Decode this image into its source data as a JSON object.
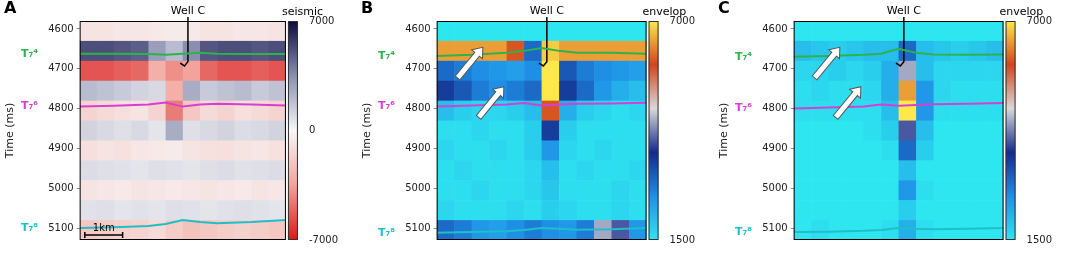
{
  "chart_data": [
    {
      "type": "heatmap",
      "panel": "A",
      "y_label": "Time (ms)",
      "xlim": [
        0,
        12
      ],
      "ylim": [
        4580,
        5130
      ],
      "yticks": [
        4600,
        4700,
        4800,
        4900,
        5000,
        5100
      ],
      "grid": true,
      "tick_labels": "y",
      "cells": {
        "x_edges": [
          0,
          1,
          2,
          3,
          4,
          5,
          6,
          7,
          8,
          9,
          10,
          11,
          12
        ],
        "y_edges": [
          4580,
          4630,
          4680,
          4730,
          4780,
          4830,
          4880,
          4930,
          4980,
          5030,
          5080,
          5130
        ],
        "values": [
          [
            -800,
            -800,
            -700,
            -700,
            -600,
            -500,
            -600,
            -800,
            -800,
            -700,
            -700,
            -800
          ],
          [
            5200,
            5200,
            5000,
            4800,
            3000,
            2000,
            3500,
            5000,
            5200,
            5200,
            5000,
            5200
          ],
          [
            -5500,
            -5500,
            -5200,
            -5000,
            -3000,
            -4000,
            -3500,
            -5000,
            -5500,
            -5500,
            -5200,
            -5500
          ],
          [
            2000,
            1800,
            1500,
            1200,
            1000,
            -3000,
            2500,
            1500,
            1800,
            2000,
            1500,
            1800
          ],
          [
            -1500,
            -1200,
            -1000,
            -800,
            -1500,
            -4500,
            -2000,
            -1200,
            -1500,
            -1000,
            -1200,
            -1500
          ],
          [
            1200,
            1000,
            800,
            1000,
            600,
            2500,
            800,
            1000,
            1200,
            900,
            1000,
            1200
          ],
          [
            -1000,
            -800,
            -900,
            -700,
            -600,
            -500,
            -800,
            -900,
            -1000,
            -800,
            -700,
            -900
          ],
          [
            900,
            800,
            700,
            600,
            800,
            700,
            600,
            800,
            900,
            700,
            800,
            900
          ],
          [
            -800,
            -700,
            -600,
            -800,
            -700,
            -600,
            -700,
            -800,
            -700,
            -600,
            -800,
            -700
          ],
          [
            700,
            800,
            600,
            700,
            600,
            800,
            700,
            600,
            700,
            800,
            700,
            600
          ],
          [
            -2000,
            -1800,
            -1600,
            -1500,
            -1200,
            -1800,
            -2200,
            -2000,
            -1800,
            -1600,
            -1800,
            -2000
          ]
        ]
      },
      "colorbar": {
        "label": "seismic",
        "range": [
          -7000,
          7000
        ],
        "ticks": [
          7000,
          0,
          -7000
        ],
        "colors": [
          "#d7191c",
          "#f2a39b",
          "#f7f7f7",
          "#8a8fb0",
          "#0b0b40"
        ]
      },
      "series": [
        {
          "name": "T₇⁴",
          "color": "#2db34a",
          "x": [
            0,
            2,
            4,
            5,
            6,
            7,
            8,
            10,
            12
          ],
          "values": [
            4662,
            4662,
            4663,
            4665,
            4662,
            4660,
            4662,
            4663,
            4663
          ]
        },
        {
          "name": "T₇⁶",
          "color": "#d63fd6",
          "x": [
            0,
            2,
            4,
            5,
            6,
            7,
            8,
            10,
            12
          ],
          "values": [
            4795,
            4793,
            4790,
            4785,
            4795,
            4790,
            4788,
            4790,
            4792
          ]
        },
        {
          "name": "T₇⁸",
          "color": "#1fbfc8",
          "x": [
            0,
            2,
            4,
            5,
            6,
            7,
            8,
            10,
            12
          ],
          "values": [
            5100,
            5098,
            5095,
            5090,
            5080,
            5085,
            5088,
            5085,
            5080
          ]
        }
      ],
      "well": {
        "label": "Well C",
        "x": [
          6.3,
          6.3,
          6.1,
          5.85
        ],
        "t": [
          4580,
          4682,
          4693,
          4686
        ]
      },
      "scale_bar": {
        "label": "1km",
        "length": 2.2
      }
    },
    {
      "type": "heatmap",
      "panel": "B",
      "y_label": "Time (ms)",
      "xlim": [
        0,
        12
      ],
      "ylim": [
        4580,
        5130
      ],
      "yticks": [
        4600,
        4700,
        4800,
        4900,
        5000,
        5100
      ],
      "grid": true,
      "tick_labels": "y",
      "cells": {
        "x_edges": [
          0,
          1,
          2,
          3,
          4,
          5,
          6,
          7,
          8,
          9,
          10,
          11,
          12
        ],
        "y_edges": [
          4580,
          4630,
          4680,
          4730,
          4780,
          4830,
          4880,
          4930,
          4980,
          5030,
          5080,
          5130
        ],
        "values": [
          [
            1500,
            1500,
            1500,
            1500,
            1500,
            1500,
            1500,
            1500,
            1500,
            1500,
            1500,
            1500
          ],
          [
            6500,
            6500,
            6500,
            6500,
            6000,
            3000,
            6800,
            6500,
            6500,
            6500,
            6500,
            6500
          ],
          [
            3000,
            2800,
            2600,
            2500,
            2400,
            2600,
            7000,
            3200,
            2800,
            2600,
            2500,
            2400
          ],
          [
            3500,
            3200,
            2800,
            2600,
            2800,
            3000,
            7000,
            3500,
            3000,
            2500,
            2200,
            2000
          ],
          [
            2000,
            1800,
            1700,
            1700,
            1800,
            2000,
            6000,
            2200,
            1800,
            1700,
            1600,
            1700
          ],
          [
            1600,
            1600,
            1700,
            1600,
            1600,
            1800,
            3500,
            1800,
            1600,
            1600,
            1600,
            1600
          ],
          [
            1700,
            1600,
            1600,
            1700,
            1600,
            1800,
            2500,
            1700,
            1600,
            1700,
            1600,
            1600
          ],
          [
            1600,
            1700,
            1600,
            1600,
            1600,
            1700,
            2000,
            1600,
            1700,
            1600,
            1600,
            1700
          ],
          [
            1600,
            1600,
            1700,
            1600,
            1600,
            1700,
            1900,
            1600,
            1600,
            1600,
            1700,
            1600
          ],
          [
            1700,
            1600,
            1600,
            1600,
            1700,
            1600,
            1800,
            1700,
            1600,
            1600,
            1700,
            1600
          ],
          [
            3000,
            2800,
            2500,
            2400,
            2600,
            2800,
            2600,
            2500,
            2800,
            4500,
            4000,
            2500
          ]
        ]
      },
      "colorbar": {
        "label": "envelop",
        "range": [
          1500,
          7000
        ],
        "ticks": [
          7000,
          1500
        ],
        "colors": [
          "#2ee6f0",
          "#1f8fe6",
          "#142a8c",
          "#d8d8d8",
          "#d2461e",
          "#ffe84a"
        ]
      },
      "series": [
        {
          "name": "T₇⁴",
          "color": "#2db34a",
          "x": [
            0,
            2,
            4,
            5,
            6,
            7,
            8,
            10,
            12
          ],
          "values": [
            4668,
            4665,
            4660,
            4655,
            4648,
            4655,
            4660,
            4660,
            4662
          ]
        },
        {
          "name": "T₇⁶",
          "color": "#d63fd6",
          "x": [
            0,
            2,
            4,
            5,
            6,
            7,
            8,
            10,
            12
          ],
          "values": [
            4795,
            4792,
            4790,
            4786,
            4792,
            4790,
            4788,
            4787,
            4785
          ]
        },
        {
          "name": "T₇⁸",
          "color": "#1fbfc8",
          "x": [
            0,
            2,
            4,
            5,
            6,
            7,
            8,
            10,
            12
          ],
          "values": [
            5112,
            5110,
            5108,
            5105,
            5100,
            5102,
            5104,
            5103,
            5100
          ]
        }
      ],
      "well": {
        "label": "Well C",
        "x": [
          6.3,
          6.3,
          6.1,
          5.85
        ],
        "t": [
          4580,
          4682,
          4693,
          4686
        ]
      }
    },
    {
      "type": "heatmap",
      "panel": "C",
      "y_label": "Time (ms)",
      "xlim": [
        0,
        12
      ],
      "ylim": [
        4580,
        5130
      ],
      "yticks": [
        4600,
        4700,
        4800,
        4900,
        5000,
        5100
      ],
      "grid": true,
      "tick_labels": "y",
      "cells": {
        "x_edges": [
          0,
          1,
          2,
          3,
          4,
          5,
          6,
          7,
          8,
          9,
          10,
          11,
          12
        ],
        "y_edges": [
          4580,
          4630,
          4680,
          4730,
          4780,
          4830,
          4880,
          4930,
          4980,
          5030,
          5080,
          5130
        ],
        "values": [
          [
            1500,
            1500,
            1500,
            1500,
            1500,
            1500,
            1500,
            1500,
            1500,
            1500,
            1500,
            1500
          ],
          [
            2000,
            1900,
            1800,
            1900,
            2000,
            2000,
            3000,
            2000,
            1900,
            1800,
            1900,
            2000
          ],
          [
            1700,
            1700,
            1800,
            1700,
            1800,
            2200,
            4500,
            2000,
            1700,
            1700,
            1700,
            1700
          ],
          [
            1600,
            1700,
            1600,
            1600,
            1700,
            2200,
            6500,
            2500,
            1700,
            1600,
            1600,
            1600
          ],
          [
            1600,
            1600,
            1600,
            1600,
            1600,
            2000,
            7000,
            2500,
            1600,
            1600,
            1600,
            1600
          ],
          [
            1500,
            1500,
            1500,
            1500,
            1600,
            1800,
            4000,
            2000,
            1500,
            1500,
            1500,
            1500
          ],
          [
            1500,
            1500,
            1500,
            1500,
            1500,
            1600,
            3000,
            1800,
            1500,
            1500,
            1500,
            1500
          ],
          [
            1500,
            1500,
            1500,
            1500,
            1500,
            1500,
            2000,
            1500,
            1500,
            1500,
            1500,
            1500
          ],
          [
            1500,
            1500,
            1500,
            1500,
            1500,
            1500,
            2500,
            1600,
            1500,
            1500,
            1500,
            1500
          ],
          [
            1500,
            1500,
            1500,
            1500,
            1500,
            1500,
            1800,
            1500,
            1500,
            1500,
            1500,
            1500
          ],
          [
            1500,
            1600,
            1500,
            1500,
            1500,
            1600,
            2200,
            1600,
            1500,
            1500,
            1500,
            1500
          ]
        ]
      },
      "colorbar": {
        "label": "envelop",
        "range": [
          1500,
          7000
        ],
        "ticks": [
          7000,
          1500
        ],
        "colors": [
          "#2ee6f0",
          "#1f8fe6",
          "#142a8c",
          "#d8d8d8",
          "#d2461e",
          "#ffe84a"
        ]
      },
      "series": [
        {
          "name": "T₇⁴",
          "color": "#2db34a",
          "x": [
            0,
            2,
            4,
            5,
            6,
            7,
            8,
            10,
            12
          ],
          "values": [
            4670,
            4668,
            4665,
            4662,
            4650,
            4660,
            4664,
            4665,
            4664
          ]
        },
        {
          "name": "T₇⁶",
          "color": "#d63fd6",
          "x": [
            0,
            2,
            4,
            5,
            6,
            7,
            8,
            10,
            12
          ],
          "values": [
            4800,
            4797,
            4795,
            4790,
            4793,
            4791,
            4789,
            4788,
            4786
          ]
        },
        {
          "name": "T₇⁸",
          "color": "#1fbfc8",
          "x": [
            0,
            2,
            4,
            5,
            6,
            7,
            8,
            10,
            12
          ],
          "values": [
            5110,
            5109,
            5107,
            5105,
            5100,
            5102,
            5103,
            5102,
            5100
          ]
        }
      ],
      "well": {
        "label": "Well C",
        "x": [
          6.3,
          6.3,
          6.1,
          5.85
        ],
        "t": [
          4580,
          4682,
          4693,
          4686
        ]
      }
    }
  ]
}
